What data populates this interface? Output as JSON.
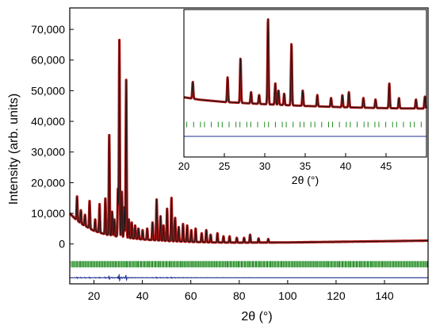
{
  "colors": {
    "observed": "#b01515",
    "calculated": "#1a1a1a",
    "reflections": "#1f8a1f",
    "difference": "#1f2f8f",
    "frame": "#000000"
  },
  "chart_data": [
    {
      "type": "line",
      "panel": "main",
      "xlabel": "2θ (°)",
      "ylabel": "Intensity (arb. units)",
      "xlim": [
        10,
        158
      ],
      "ylim": [
        -13000,
        77000
      ],
      "xticks": [
        "20",
        "40",
        "60",
        "80",
        "100",
        "120",
        "140"
      ],
      "yticks": [
        "0",
        "10,000",
        "20,000",
        "30,000",
        "40,000",
        "50,000",
        "60,000",
        "70,000"
      ],
      "grid": false,
      "legend": "none",
      "background_curve": [
        [
          10,
          10000
        ],
        [
          12,
          8400
        ],
        [
          15,
          6500
        ],
        [
          20,
          4300
        ],
        [
          25,
          3100
        ],
        [
          30,
          2400
        ],
        [
          35,
          1900
        ],
        [
          40,
          1500
        ],
        [
          50,
          1000
        ],
        [
          60,
          700
        ],
        [
          70,
          500
        ],
        [
          80,
          450
        ],
        [
          100,
          500
        ],
        [
          120,
          700
        ],
        [
          140,
          900
        ],
        [
          158,
          1100
        ]
      ],
      "peaks": [
        [
          13.0,
          15500
        ],
        [
          14.6,
          11000
        ],
        [
          16.3,
          9500
        ],
        [
          18.2,
          14000
        ],
        [
          20.5,
          8000
        ],
        [
          22.3,
          13000
        ],
        [
          24.7,
          14800
        ],
        [
          26.3,
          35500
        ],
        [
          27.5,
          10500
        ],
        [
          28.4,
          8000
        ],
        [
          29.9,
          18000
        ],
        [
          30.5,
          66500
        ],
        [
          31.5,
          17000
        ],
        [
          32.5,
          12000
        ],
        [
          33.3,
          53500
        ],
        [
          34.4,
          8000
        ],
        [
          35.6,
          7000
        ],
        [
          37.0,
          6000
        ],
        [
          38.4,
          5000
        ],
        [
          40.1,
          4500
        ],
        [
          42.0,
          5000
        ],
        [
          44.2,
          7000
        ],
        [
          45.9,
          14500
        ],
        [
          47.5,
          9000
        ],
        [
          48.7,
          6000
        ],
        [
          50.2,
          11500
        ],
        [
          52.0,
          15000
        ],
        [
          53.5,
          8500
        ],
        [
          55.0,
          5500
        ],
        [
          56.8,
          6500
        ],
        [
          58.5,
          6000
        ],
        [
          60.2,
          4500
        ],
        [
          62.0,
          5000
        ],
        [
          64.5,
          3500
        ],
        [
          66.4,
          4500
        ],
        [
          68.2,
          3000
        ],
        [
          71.0,
          3500
        ],
        [
          73.5,
          2500
        ],
        [
          76.0,
          2500
        ],
        [
          79.0,
          2000
        ],
        [
          82.0,
          2000
        ],
        [
          84.5,
          3000
        ],
        [
          88.0,
          1800
        ],
        [
          92.0,
          1600
        ]
      ],
      "reflection_band_y": -6600,
      "difference_baseline_y": -11000
    },
    {
      "type": "line",
      "panel": "inset",
      "xlabel": "2θ (°)",
      "ylabel": "",
      "xlim": [
        20,
        50
      ],
      "ylim": [
        0,
        100
      ],
      "xticks": [
        "20",
        "25",
        "30",
        "35",
        "40",
        "45"
      ],
      "yticks": [],
      "grid": false,
      "background_curve": [
        [
          20,
          40.5
        ],
        [
          22,
          38.8
        ],
        [
          25,
          37.3
        ],
        [
          30,
          35.8
        ],
        [
          35,
          34.6
        ],
        [
          40,
          33.7
        ],
        [
          45,
          33.1
        ],
        [
          50,
          32.8
        ]
      ],
      "peaks": [
        [
          21.1,
          51
        ],
        [
          25.4,
          54
        ],
        [
          27.0,
          67
        ],
        [
          28.3,
          44
        ],
        [
          29.3,
          42
        ],
        [
          30.4,
          94
        ],
        [
          31.3,
          50
        ],
        [
          31.7,
          45
        ],
        [
          32.4,
          43
        ],
        [
          33.3,
          77
        ],
        [
          34.7,
          45
        ],
        [
          36.5,
          42
        ],
        [
          38.2,
          40
        ],
        [
          39.6,
          42
        ],
        [
          40.4,
          44
        ],
        [
          42.2,
          40
        ],
        [
          43.7,
          39
        ],
        [
          45.4,
          50
        ],
        [
          46.6,
          40
        ],
        [
          48.7,
          39
        ],
        [
          49.8,
          41
        ]
      ],
      "reflection_band_y": 22,
      "difference_baseline_y": 14
    }
  ]
}
